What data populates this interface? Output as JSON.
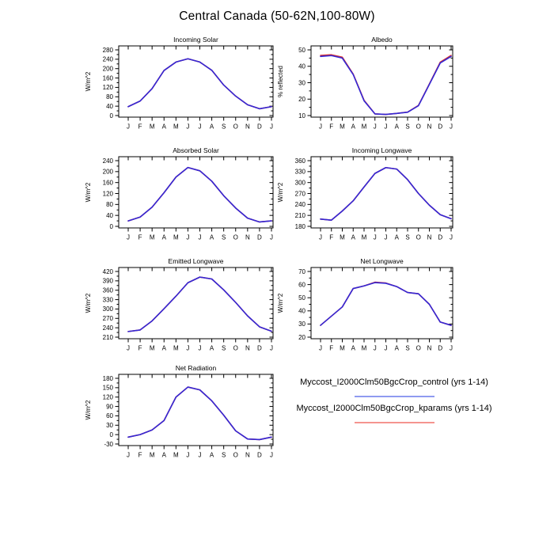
{
  "page": {
    "title": "Central Canada (50-62N,100-80W)"
  },
  "months": [
    "J",
    "F",
    "M",
    "A",
    "M",
    "J",
    "J",
    "A",
    "S",
    "O",
    "N",
    "D",
    "J"
  ],
  "colors": {
    "control_line": "#3328d6",
    "kparams_line": "#d62e2e",
    "legend_control_line": "#8f9bf0",
    "legend_kparams_line": "#f5948f",
    "axis": "#000000",
    "background": "#ffffff"
  },
  "legend": {
    "entries": [
      {
        "id": "control",
        "label": "Myccost_I2000Clm50BgcCrop_control (yrs 1-14)"
      },
      {
        "id": "kparams",
        "label": "Myccost_I2000Clm50BgcCrop_kparams (yrs 1-14)"
      }
    ]
  },
  "chart_data": [
    {
      "id": "incoming-solar",
      "type": "line",
      "title": "Incoming Solar",
      "xlabel": "",
      "ylabel": "W/m^2",
      "ylim": [
        0,
        280
      ],
      "ystep": 40,
      "legend_position": "none",
      "grid": false,
      "categories": [
        "J",
        "F",
        "M",
        "A",
        "M",
        "J",
        "J",
        "A",
        "S",
        "O",
        "N",
        "D",
        "J"
      ],
      "series": [
        {
          "name": "control",
          "values": [
            38,
            62,
            115,
            192,
            228,
            242,
            228,
            193,
            130,
            83,
            46,
            29,
            38
          ]
        },
        {
          "name": "kparams",
          "values": [
            38,
            62,
            115,
            192,
            228,
            242,
            228,
            193,
            130,
            83,
            46,
            29,
            38
          ]
        }
      ]
    },
    {
      "id": "albedo",
      "type": "line",
      "title": "Albedo",
      "xlabel": "",
      "ylabel": "% reflected",
      "ylim": [
        10,
        50
      ],
      "ystep": 10,
      "legend_position": "none",
      "grid": false,
      "categories": [
        "J",
        "F",
        "M",
        "A",
        "M",
        "J",
        "J",
        "A",
        "S",
        "O",
        "N",
        "D",
        "J"
      ],
      "series": [
        {
          "name": "control",
          "values": [
            46,
            46.5,
            45,
            35,
            19,
            11,
            10.7,
            11.3,
            12,
            16,
            29,
            42,
            46
          ]
        },
        {
          "name": "kparams",
          "values": [
            46.6,
            47,
            45.5,
            35.3,
            19.3,
            11,
            10.7,
            11.3,
            12.1,
            16.2,
            29.2,
            42.5,
            46.6
          ]
        }
      ]
    },
    {
      "id": "absorbed-solar",
      "type": "line",
      "title": "Absorbed Solar",
      "xlabel": "",
      "ylabel": "W/m^2",
      "ylim": [
        0,
        240
      ],
      "ystep": 40,
      "legend_position": "none",
      "grid": false,
      "categories": [
        "J",
        "F",
        "M",
        "A",
        "M",
        "J",
        "J",
        "A",
        "S",
        "O",
        "N",
        "D",
        "J"
      ],
      "series": [
        {
          "name": "control",
          "values": [
            20,
            34,
            70,
            123,
            180,
            215,
            203,
            165,
            112,
            67,
            30,
            16,
            20
          ]
        },
        {
          "name": "kparams",
          "values": [
            20,
            34,
            70,
            123,
            180,
            215,
            203,
            165,
            112,
            67,
            30,
            16,
            20
          ]
        }
      ]
    },
    {
      "id": "incoming-longwave",
      "type": "line",
      "title": "Incoming Longwave",
      "xlabel": "",
      "ylabel": "W/m^2",
      "ylim": [
        180,
        360
      ],
      "ystep": 30,
      "legend_position": "none",
      "grid": false,
      "categories": [
        "J",
        "F",
        "M",
        "A",
        "M",
        "J",
        "J",
        "A",
        "S",
        "O",
        "N",
        "D",
        "J"
      ],
      "series": [
        {
          "name": "control",
          "values": [
            200,
            197,
            222,
            250,
            288,
            325,
            341,
            337,
            308,
            270,
            238,
            212,
            201
          ]
        },
        {
          "name": "kparams",
          "values": [
            200,
            197,
            222,
            250,
            288,
            325,
            341,
            337,
            308,
            270,
            238,
            212,
            201
          ]
        }
      ]
    },
    {
      "id": "emitted-longwave",
      "type": "line",
      "title": "Emitted Longwave",
      "xlabel": "",
      "ylabel": "W/m^2",
      "ylim": [
        210,
        420
      ],
      "ystep": 30,
      "legend_position": "none",
      "grid": false,
      "categories": [
        "J",
        "F",
        "M",
        "A",
        "M",
        "J",
        "J",
        "A",
        "S",
        "O",
        "N",
        "D",
        "J"
      ],
      "series": [
        {
          "name": "control",
          "values": [
            228,
            233,
            262,
            301,
            341,
            384,
            402,
            396,
            361,
            321,
            278,
            243,
            229
          ]
        },
        {
          "name": "kparams",
          "values": [
            228,
            233,
            262,
            301,
            341,
            384,
            402,
            396,
            361,
            321,
            278,
            243,
            229
          ]
        }
      ]
    },
    {
      "id": "net-longwave",
      "type": "line",
      "title": "Net Longwave",
      "xlabel": "",
      "ylabel": "W/m^2",
      "ylim": [
        20,
        70
      ],
      "ystep": 10,
      "legend_position": "none",
      "grid": false,
      "categories": [
        "J",
        "F",
        "M",
        "A",
        "M",
        "J",
        "J",
        "A",
        "S",
        "O",
        "N",
        "D",
        "J"
      ],
      "series": [
        {
          "name": "control",
          "values": [
            29,
            36,
            43,
            57,
            59,
            61.5,
            61,
            58.5,
            54,
            53,
            45,
            31.5,
            29
          ]
        },
        {
          "name": "kparams",
          "values": [
            29,
            36,
            43,
            57,
            59,
            61.8,
            61.2,
            58.5,
            54,
            53,
            45,
            31.5,
            29
          ]
        }
      ]
    },
    {
      "id": "net-radiation",
      "type": "line",
      "title": "Net Radiation",
      "xlabel": "",
      "ylabel": "W/m^2",
      "ylim": [
        -30,
        180
      ],
      "ystep": 30,
      "legend_position": "none",
      "grid": false,
      "categories": [
        "J",
        "F",
        "M",
        "A",
        "M",
        "J",
        "J",
        "A",
        "S",
        "O",
        "N",
        "D",
        "J"
      ],
      "series": [
        {
          "name": "control",
          "values": [
            -8,
            0,
            15,
            45,
            120,
            152,
            143,
            108,
            62,
            12,
            -14,
            -16,
            -8
          ]
        },
        {
          "name": "kparams",
          "values": [
            -8,
            0,
            15,
            45,
            120,
            152,
            143,
            108,
            62,
            12,
            -14,
            -16,
            -8
          ]
        }
      ]
    }
  ]
}
